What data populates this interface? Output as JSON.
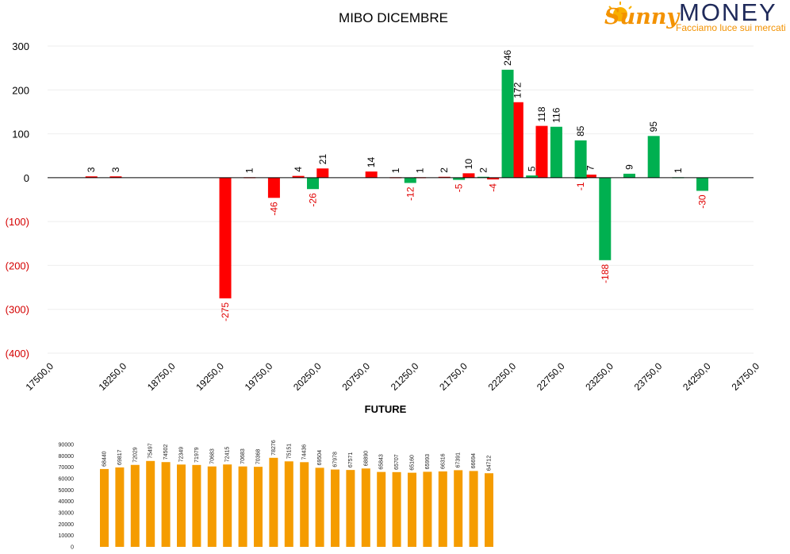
{
  "logo": {
    "brand_script": "Sunny",
    "brand_word": "MONEY",
    "tagline": "Facciamo luce sui mercati"
  },
  "colors": {
    "green": "#00b050",
    "red": "#ff0000",
    "orange": "#f59c00",
    "negative_label": "#e00000",
    "logo_orange": "#f39200",
    "logo_navy": "#1f2a5a"
  },
  "chart_data": [
    {
      "type": "bar",
      "title": "MIBO DICEMBRE",
      "xlabel": "",
      "ylabel": "",
      "ylim": [
        -400,
        300
      ],
      "yticks": [
        300,
        200,
        100,
        0,
        -100,
        -200,
        -300,
        -400
      ],
      "ytick_labels": [
        "300",
        "200",
        "100",
        "0",
        "(100)",
        "(200)",
        "(300)",
        "(400)"
      ],
      "xlim": [
        17500,
        24750
      ],
      "xticks": [
        17500,
        18250,
        18750,
        19250,
        19750,
        20250,
        20750,
        21250,
        21750,
        22250,
        22750,
        23250,
        23750,
        24250,
        24750
      ],
      "xtick_labels": [
        "17500,0",
        "18250,0",
        "18750,0",
        "19250,0",
        "19750,0",
        "20250,0",
        "20750,0",
        "21250,0",
        "21750,0",
        "22250,0",
        "22750,0",
        "23250,0",
        "23750,0",
        "24250,0",
        "24750,0"
      ],
      "grid": true,
      "legend": "none",
      "series": [
        {
          "color": "red",
          "points": [
            {
              "x": 17950,
              "y": 3
            },
            {
              "x": 18200,
              "y": 3
            },
            {
              "x": 19325,
              "y": -275
            },
            {
              "x": 19575,
              "y": 1
            },
            {
              "x": 19825,
              "y": -46
            },
            {
              "x": 20075,
              "y": 4
            },
            {
              "x": 20325,
              "y": 21
            },
            {
              "x": 20825,
              "y": 14
            },
            {
              "x": 21075,
              "y": 1
            },
            {
              "x": 21325,
              "y": 1
            },
            {
              "x": 21575,
              "y": 2
            },
            {
              "x": 21825,
              "y": 10
            },
            {
              "x": 22075,
              "y": -4
            },
            {
              "x": 22325,
              "y": 172
            },
            {
              "x": 22575,
              "y": 118
            },
            {
              "x": 23075,
              "y": 7
            }
          ]
        },
        {
          "color": "green",
          "points": [
            {
              "x": 20225,
              "y": -26
            },
            {
              "x": 21225,
              "y": -12
            },
            {
              "x": 21725,
              "y": -5
            },
            {
              "x": 21975,
              "y": 2
            },
            {
              "x": 22225,
              "y": 246
            },
            {
              "x": 22475,
              "y": 5
            },
            {
              "x": 22725,
              "y": 116
            },
            {
              "x": 22975,
              "y": -1
            },
            {
              "x": 22975,
              "y": 85
            },
            {
              "x": 23225,
              "y": -188
            },
            {
              "x": 23475,
              "y": 9
            },
            {
              "x": 23725,
              "y": 95
            },
            {
              "x": 23975,
              "y": 1
            },
            {
              "x": 24225,
              "y": -30
            }
          ]
        }
      ]
    },
    {
      "type": "bar",
      "title": "FUTURE",
      "xlabel": "",
      "ylabel": "",
      "ylim": [
        0,
        90000
      ],
      "yticks": [
        90000,
        80000,
        70000,
        60000,
        50000,
        40000,
        30000,
        20000,
        10000,
        0
      ],
      "ytick_labels": [
        "90000",
        "80000",
        "70000",
        "60000",
        "50000",
        "40000",
        "30000",
        "20000",
        "10000",
        "0"
      ],
      "grid": false,
      "legend": "none",
      "values": [
        68440,
        69817,
        72029,
        75497,
        74502,
        72349,
        71979,
        70683,
        72415,
        70683,
        70368,
        78276,
        75151,
        74436,
        69504,
        67978,
        67571,
        68890,
        65843,
        65707,
        65160,
        65993,
        66316,
        67391,
        66694,
        64712
      ],
      "value_labels": [
        "68440",
        "69817",
        "72029",
        "75497",
        "74502",
        "72349",
        "71979",
        "70683",
        "72415",
        "70683",
        "70368",
        "78276",
        "75151",
        "74436",
        "69504",
        "67978",
        "67571",
        "68890",
        "65843",
        "65707",
        "65160",
        "65993",
        "66316",
        "67391",
        "66694",
        "64712"
      ]
    }
  ]
}
